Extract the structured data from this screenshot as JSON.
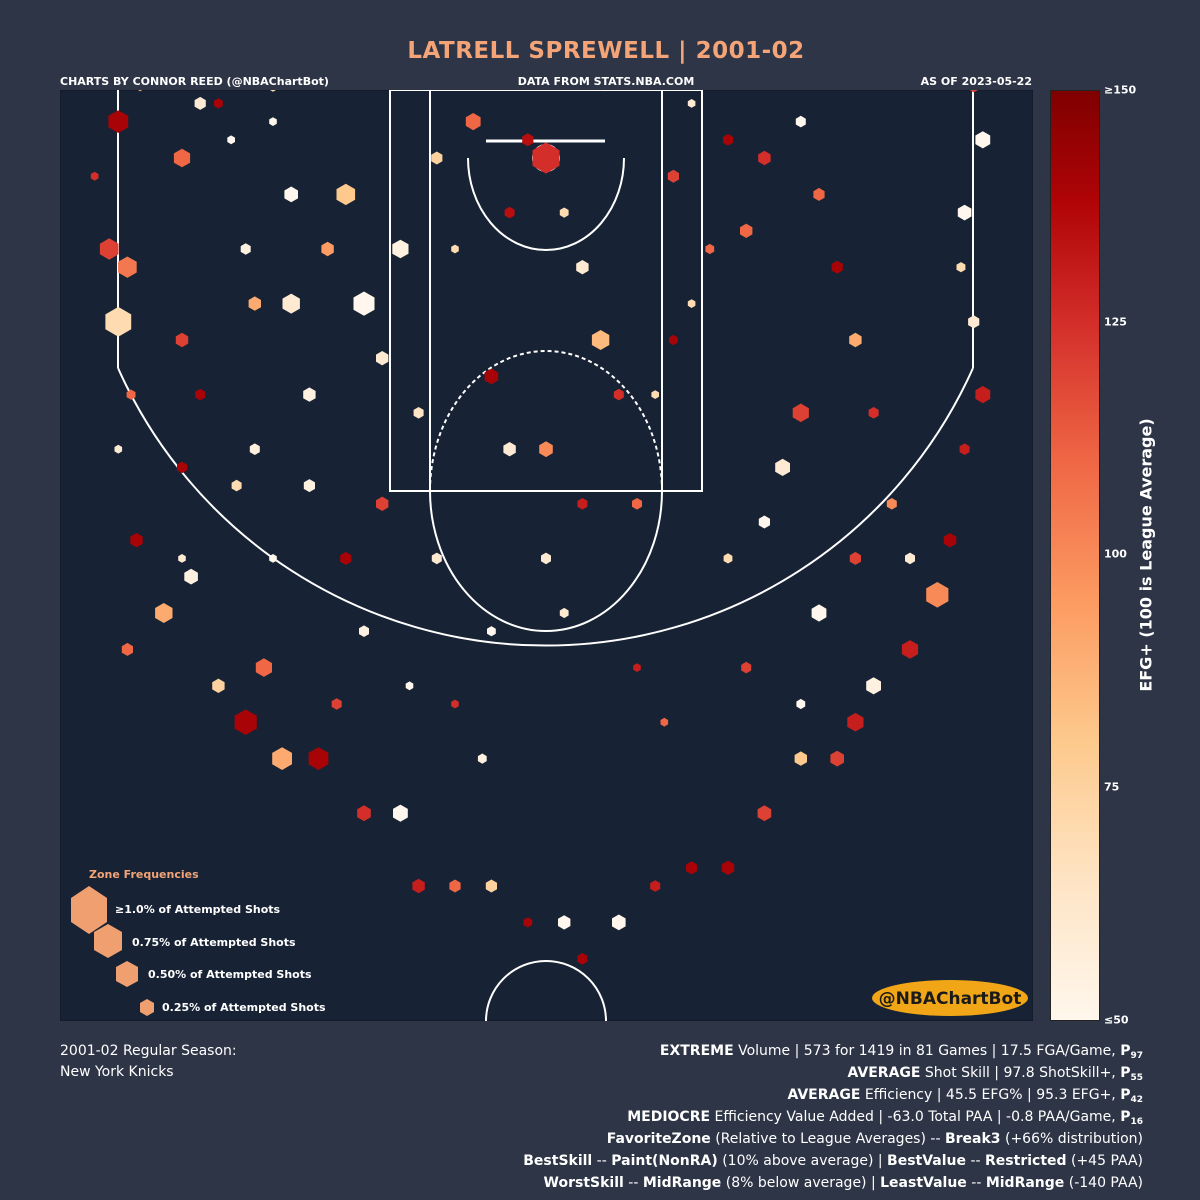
{
  "header": {
    "title": "LATRELL SPREWELL | 2001-02",
    "credit_left": "CHARTS BY CONNOR REED (@NBAChartBot)",
    "credit_mid": "DATA FROM STATS.NBA.COM",
    "credit_right": "AS OF 2023-05-22"
  },
  "legend": {
    "title": "Zone Frequencies",
    "items": [
      "≥1.0% of Attempted Shots",
      "0.75% of Attempted Shots",
      "0.50% of Attempted Shots",
      "0.25% of Attempted Shots"
    ]
  },
  "watermark": "@NBAChartBot",
  "colorbar": {
    "label": "EFG+ (100 is League Average)",
    "ticks": [
      "≥150",
      "125",
      "100",
      "75",
      "≤50"
    ]
  },
  "footer": {
    "season_line1": "2001-02 Regular Season:",
    "season_line2": "New York Knicks",
    "stats": [
      {
        "bold": "EXTREME",
        "text": " Volume | 573 for 1419 in 81 Games | 17.5 FGA/Game, ",
        "pct": "P",
        "sub": "97"
      },
      {
        "bold": "AVERAGE",
        "text": " Shot Skill | 97.8 ShotSkill+, ",
        "pct": "P",
        "sub": "55"
      },
      {
        "bold": "AVERAGE",
        "text": " Efficiency | 45.5 EFG% | 95.3 EFG+, ",
        "pct": "P",
        "sub": "42"
      },
      {
        "bold": "MEDIOCRE",
        "text": " Efficiency Value Added | -63.0 Total PAA | -0.8 PAA/Game, ",
        "pct": "P",
        "sub": "16"
      }
    ],
    "favorite": {
      "label": "FavoriteZone",
      "mid": " (Relative to League Averages) -- ",
      "zone": "Break3",
      "tail": " (+66% distribution)"
    },
    "best": {
      "label": "BestSkill",
      "sep1": " -- ",
      "zone": "Paint(NonRA)",
      "mid": " (10% above average) | ",
      "label2": "BestValue",
      "sep2": " -- ",
      "zone2": "Restricted",
      "tail": " (+45 PAA)"
    },
    "worst": {
      "label": "WorstSkill",
      "sep1": " -- ",
      "zone": "MidRange",
      "mid": " (8% below average) | ",
      "label2": "LeastValue",
      "sep2": " -- ",
      "zone2": "MidRange",
      "tail": " (-140 PAA)"
    }
  },
  "colors": {
    "background": "#2e3547",
    "court": "#172334",
    "title": "#f4a477",
    "watermark_bg": "#f0a616"
  },
  "chart_data": {
    "type": "hexbin-shot-chart",
    "value_label": "EFG+ (100 is League Average)",
    "color_range": [
      50,
      150
    ],
    "size_key": "share of attempted shots (%)",
    "hexes": [
      {
        "x": -235,
        "y": -20,
        "v": 140,
        "s": 0.6
      },
      {
        "x": -223,
        "y": -40,
        "v": 90,
        "s": 0.22
      },
      {
        "x": -248,
        "y": 10,
        "v": 125,
        "s": 0.1
      },
      {
        "x": -240,
        "y": 50,
        "v": 120,
        "s": 0.55
      },
      {
        "x": -230,
        "y": 60,
        "v": 105,
        "s": 0.55
      },
      {
        "x": -235,
        "y": 90,
        "v": 70,
        "s": 0.85
      },
      {
        "x": -228,
        "y": 130,
        "v": 110,
        "s": 0.15
      },
      {
        "x": -235,
        "y": 160,
        "v": 60,
        "s": 0.1
      },
      {
        "x": -225,
        "y": -60,
        "v": 50,
        "s": 0.1
      },
      {
        "x": -225,
        "y": 210,
        "v": 140,
        "s": 0.3
      },
      {
        "x": -210,
        "y": -60,
        "v": 70,
        "s": 0.25
      },
      {
        "x": -200,
        "y": 220,
        "v": 60,
        "s": 0.1
      },
      {
        "x": -185,
        "y": -50,
        "v": 120,
        "s": 0.1
      },
      {
        "x": -180,
        "y": -30,
        "v": 140,
        "s": 0.15
      },
      {
        "x": -173,
        "y": -10,
        "v": 50,
        "s": 0.1
      },
      {
        "x": -165,
        "y": 50,
        "v": 55,
        "s": 0.2
      },
      {
        "x": -160,
        "y": 80,
        "v": 90,
        "s": 0.3
      },
      {
        "x": -160,
        "y": 160,
        "v": 55,
        "s": 0.2
      },
      {
        "x": -150,
        "y": -40,
        "v": 70,
        "s": 0.25
      },
      {
        "x": -140,
        "y": 20,
        "v": 50,
        "s": 0.35
      },
      {
        "x": -140,
        "y": 80,
        "v": 60,
        "s": 0.5
      },
      {
        "x": -130,
        "y": 130,
        "v": 55,
        "s": 0.3
      },
      {
        "x": -130,
        "y": 180,
        "v": 55,
        "s": 0.25
      },
      {
        "x": -120,
        "y": 50,
        "v": 95,
        "s": 0.3
      },
      {
        "x": -110,
        "y": 20,
        "v": 80,
        "s": 0.55
      },
      {
        "x": -100,
        "y": 80,
        "v": 50,
        "s": 0.65
      },
      {
        "x": -90,
        "y": 110,
        "v": 60,
        "s": 0.3
      },
      {
        "x": -80,
        "y": 50,
        "v": 55,
        "s": 0.45
      },
      {
        "x": -70,
        "y": 140,
        "v": 65,
        "s": 0.2
      },
      {
        "x": -60,
        "y": 0,
        "v": 75,
        "s": 0.25
      },
      {
        "x": -50,
        "y": 50,
        "v": 70,
        "s": 0.1
      },
      {
        "x": -40,
        "y": -20,
        "v": 110,
        "s": 0.4
      },
      {
        "x": -30,
        "y": 120,
        "v": 140,
        "s": 0.35
      },
      {
        "x": -20,
        "y": 30,
        "v": 135,
        "s": 0.2
      },
      {
        "x": -10,
        "y": -10,
        "v": 135,
        "s": 0.25
      },
      {
        "x": 0,
        "y": 0,
        "v": 125,
        "s": 0.9
      },
      {
        "x": 10,
        "y": 30,
        "v": 70,
        "s": 0.15
      },
      {
        "x": 20,
        "y": 60,
        "v": 60,
        "s": 0.3
      },
      {
        "x": 30,
        "y": 100,
        "v": 85,
        "s": 0.5
      },
      {
        "x": 40,
        "y": 130,
        "v": 125,
        "s": 0.2
      },
      {
        "x": -20,
        "y": 160,
        "v": 60,
        "s": 0.3
      },
      {
        "x": 0,
        "y": 160,
        "v": 100,
        "s": 0.35
      },
      {
        "x": 20,
        "y": 190,
        "v": 130,
        "s": 0.2
      },
      {
        "x": 50,
        "y": 190,
        "v": 110,
        "s": 0.2
      },
      {
        "x": 60,
        "y": 130,
        "v": 70,
        "s": 0.1
      },
      {
        "x": 70,
        "y": 100,
        "v": 140,
        "s": 0.15
      },
      {
        "x": 80,
        "y": 80,
        "v": 70,
        "s": 0.1
      },
      {
        "x": 90,
        "y": 50,
        "v": 110,
        "s": 0.15
      },
      {
        "x": -90,
        "y": 190,
        "v": 120,
        "s": 0.3
      },
      {
        "x": -110,
        "y": 220,
        "v": 140,
        "s": 0.25
      },
      {
        "x": -60,
        "y": 220,
        "v": 60,
        "s": 0.2
      },
      {
        "x": 0,
        "y": 220,
        "v": 60,
        "s": 0.2
      },
      {
        "x": 100,
        "y": 220,
        "v": 70,
        "s": 0.15
      },
      {
        "x": -200,
        "y": 100,
        "v": 120,
        "s": 0.3
      },
      {
        "x": -190,
        "y": 130,
        "v": 140,
        "s": 0.2
      },
      {
        "x": -170,
        "y": 180,
        "v": 70,
        "s": 0.2
      },
      {
        "x": -150,
        "y": 220,
        "v": 50,
        "s": 0.1
      },
      {
        "x": -180,
        "y": 290,
        "v": 75,
        "s": 0.3
      },
      {
        "x": -165,
        "y": 310,
        "v": 140,
        "s": 0.7
      },
      {
        "x": -155,
        "y": 280,
        "v": 110,
        "s": 0.45
      },
      {
        "x": -145,
        "y": 330,
        "v": 90,
        "s": 0.6
      },
      {
        "x": -125,
        "y": 330,
        "v": 140,
        "s": 0.6
      },
      {
        "x": -115,
        "y": 300,
        "v": 120,
        "s": 0.2
      },
      {
        "x": -100,
        "y": 360,
        "v": 125,
        "s": 0.35
      },
      {
        "x": -80,
        "y": 360,
        "v": 50,
        "s": 0.4
      },
      {
        "x": -70,
        "y": 400,
        "v": 130,
        "s": 0.3
      },
      {
        "x": -50,
        "y": 400,
        "v": 110,
        "s": 0.25
      },
      {
        "x": -30,
        "y": 400,
        "v": 75,
        "s": 0.25
      },
      {
        "x": -10,
        "y": 420,
        "v": 140,
        "s": 0.15
      },
      {
        "x": 10,
        "y": 420,
        "v": 50,
        "s": 0.3
      },
      {
        "x": 20,
        "y": 440,
        "v": 140,
        "s": 0.2
      },
      {
        "x": 40,
        "y": 420,
        "v": 50,
        "s": 0.35
      },
      {
        "x": 60,
        "y": 400,
        "v": 130,
        "s": 0.2
      },
      {
        "x": 80,
        "y": 390,
        "v": 140,
        "s": 0.25
      },
      {
        "x": 100,
        "y": 390,
        "v": 140,
        "s": 0.3
      },
      {
        "x": 120,
        "y": 360,
        "v": 120,
        "s": 0.35
      },
      {
        "x": 140,
        "y": 330,
        "v": 80,
        "s": 0.3
      },
      {
        "x": 160,
        "y": 330,
        "v": 120,
        "s": 0.35
      },
      {
        "x": 170,
        "y": 310,
        "v": 130,
        "s": 0.45
      },
      {
        "x": 180,
        "y": 290,
        "v": 55,
        "s": 0.4
      },
      {
        "x": 200,
        "y": 270,
        "v": 130,
        "s": 0.45
      },
      {
        "x": 215,
        "y": 240,
        "v": 100,
        "s": 0.7
      },
      {
        "x": 222,
        "y": 210,
        "v": 140,
        "s": 0.3
      },
      {
        "x": 230,
        "y": 160,
        "v": 130,
        "s": 0.2
      },
      {
        "x": 240,
        "y": 130,
        "v": 130,
        "s": 0.4
      },
      {
        "x": 235,
        "y": 90,
        "v": 60,
        "s": 0.25
      },
      {
        "x": 228,
        "y": 60,
        "v": 70,
        "s": 0.15
      },
      {
        "x": 230,
        "y": -60,
        "v": 140,
        "s": 0.3
      },
      {
        "x": 235,
        "y": -40,
        "v": 120,
        "s": 0.3
      },
      {
        "x": 240,
        "y": -10,
        "v": 50,
        "s": 0.4
      },
      {
        "x": 230,
        "y": 30,
        "v": 50,
        "s": 0.35
      },
      {
        "x": 200,
        "y": 220,
        "v": 60,
        "s": 0.2
      },
      {
        "x": 190,
        "y": 190,
        "v": 100,
        "s": 0.2
      },
      {
        "x": 180,
        "y": 140,
        "v": 125,
        "s": 0.2
      },
      {
        "x": 170,
        "y": 100,
        "v": 90,
        "s": 0.3
      },
      {
        "x": 160,
        "y": 60,
        "v": 140,
        "s": 0.25
      },
      {
        "x": 150,
        "y": 20,
        "v": 110,
        "s": 0.25
      },
      {
        "x": 140,
        "y": -20,
        "v": 50,
        "s": 0.2
      },
      {
        "x": 130,
        "y": -50,
        "v": 55,
        "s": 0.1
      },
      {
        "x": 120,
        "y": 0,
        "v": 125,
        "s": 0.3
      },
      {
        "x": 110,
        "y": 40,
        "v": 110,
        "s": 0.3
      },
      {
        "x": 100,
        "y": -10,
        "v": 140,
        "s": 0.2
      },
      {
        "x": 80,
        "y": -30,
        "v": 60,
        "s": 0.1
      },
      {
        "x": 70,
        "y": 10,
        "v": 120,
        "s": 0.25
      },
      {
        "x": 140,
        "y": 140,
        "v": 120,
        "s": 0.45
      },
      {
        "x": 130,
        "y": 170,
        "v": 60,
        "s": 0.4
      },
      {
        "x": 120,
        "y": 200,
        "v": 50,
        "s": 0.25
      },
      {
        "x": 150,
        "y": 250,
        "v": 50,
        "s": 0.4
      },
      {
        "x": 170,
        "y": 220,
        "v": 120,
        "s": 0.25
      },
      {
        "x": 140,
        "y": 300,
        "v": 50,
        "s": 0.15
      },
      {
        "x": -200,
        "y": 0,
        "v": 110,
        "s": 0.45
      },
      {
        "x": -190,
        "y": -30,
        "v": 60,
        "s": 0.25
      },
      {
        "x": -170,
        "y": -60,
        "v": 140,
        "s": 0.1
      },
      {
        "x": -150,
        "y": -20,
        "v": 50,
        "s": 0.1
      },
      {
        "x": -50,
        "y": 300,
        "v": 125,
        "s": 0.1
      },
      {
        "x": -30,
        "y": 260,
        "v": 50,
        "s": 0.15
      },
      {
        "x": 10,
        "y": 250,
        "v": 60,
        "s": 0.15
      },
      {
        "x": 50,
        "y": 280,
        "v": 130,
        "s": 0.1
      },
      {
        "x": -200,
        "y": 170,
        "v": 140,
        "s": 0.2
      },
      {
        "x": -210,
        "y": 250,
        "v": 90,
        "s": 0.5
      },
      {
        "x": -230,
        "y": 270,
        "v": 110,
        "s": 0.25
      },
      {
        "x": -195,
        "y": 230,
        "v": 55,
        "s": 0.35
      },
      {
        "x": -100,
        "y": 260,
        "v": 55,
        "s": 0.2
      },
      {
        "x": -75,
        "y": 290,
        "v": 50,
        "s": 0.1
      },
      {
        "x": -35,
        "y": 330,
        "v": 55,
        "s": 0.15
      },
      {
        "x": 65,
        "y": 310,
        "v": 110,
        "s": 0.1
      },
      {
        "x": 110,
        "y": 280,
        "v": 120,
        "s": 0.2
      },
      {
        "x": -120,
        "y": -60,
        "v": 130,
        "s": 0.3
      },
      {
        "x": -90,
        "y": -50,
        "v": 90,
        "s": 0.4
      },
      {
        "x": -60,
        "y": -60,
        "v": 60,
        "s": 0.3
      },
      {
        "x": -40,
        "y": -60,
        "v": 120,
        "s": 0.15
      },
      {
        "x": 30,
        "y": -40,
        "v": 110,
        "s": 0.15
      },
      {
        "x": 80,
        "y": -60,
        "v": 60,
        "s": 0.1
      },
      {
        "x": 150,
        "y": -60,
        "v": 140,
        "s": 0.15
      }
    ]
  }
}
